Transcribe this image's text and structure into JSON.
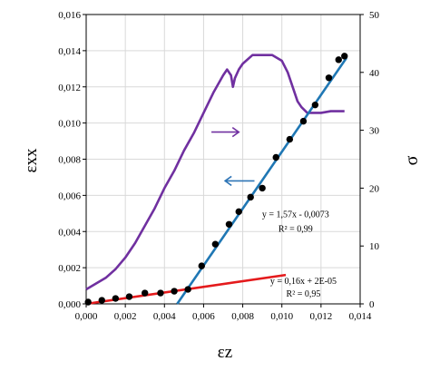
{
  "chart_data": {
    "type": "scatter",
    "xlabel": "εz",
    "ylabel_left": "εxx",
    "ylabel_right": "σ",
    "xlim": [
      0,
      0.014
    ],
    "ylim_left": [
      0,
      0.016
    ],
    "ylim_right": [
      0,
      50
    ],
    "x_ticks": [
      "0,000",
      "0,002",
      "0,004",
      "0,006",
      "0,008",
      "0,010",
      "0,012",
      "0,014"
    ],
    "y_left_ticks": [
      "0,000",
      "0,002",
      "0,004",
      "0,006",
      "0,008",
      "0,010",
      "0,012",
      "0,014",
      "0,016"
    ],
    "y_right_ticks": [
      "0",
      "10",
      "20",
      "30",
      "40",
      "50"
    ],
    "grid": true,
    "colors": {
      "points": "#000000",
      "stress_curve": "#7030a0",
      "fit_steep": "#1f77b4",
      "fit_shallow": "#e41a1c",
      "arrow_left": "#2e75b6",
      "arrow_right": "#7030a0"
    },
    "series": [
      {
        "axis": "left",
        "style": "points",
        "x": [
          0.0001,
          0.0008,
          0.0015,
          0.0022,
          0.003,
          0.0038,
          0.0045,
          0.0052,
          0.0059,
          0.0066,
          0.0073,
          0.0078,
          0.0084,
          0.009,
          0.0097,
          0.0104,
          0.0111,
          0.0117,
          0.0124,
          0.0129,
          0.0132
        ],
        "y": [
          0.0001,
          0.0002,
          0.0003,
          0.0004,
          0.0006,
          0.0006,
          0.0007,
          0.0008,
          0.0021,
          0.0033,
          0.0044,
          0.0051,
          0.0059,
          0.0064,
          0.0081,
          0.0091,
          0.0101,
          0.011,
          0.0125,
          0.0135,
          0.0137
        ]
      },
      {
        "axis": "right",
        "style": "line",
        "x": [
          0,
          0.0005,
          0.001,
          0.0015,
          0.002,
          0.0025,
          0.003,
          0.0035,
          0.004,
          0.0045,
          0.005,
          0.0055,
          0.006,
          0.0065,
          0.007,
          0.0072,
          0.0074,
          0.0075,
          0.0076,
          0.0078,
          0.008,
          0.0085,
          0.009,
          0.0095,
          0.01,
          0.0103,
          0.0106,
          0.0108,
          0.011,
          0.0113,
          0.0115,
          0.012,
          0.0125,
          0.013,
          0.0132
        ],
        "y": [
          2.5,
          3.5,
          4.5,
          6,
          8,
          10.5,
          13.5,
          16.5,
          20,
          23,
          26.5,
          29.5,
          33,
          36.5,
          39.5,
          40.5,
          39.5,
          37.5,
          39,
          40.5,
          41.5,
          43,
          43,
          43,
          42,
          40,
          37,
          35,
          34,
          33,
          33,
          33,
          33.3,
          33.3,
          33.3
        ]
      },
      {
        "axis": "left",
        "style": "fit-line",
        "x": [
          0.00465,
          0.0133
        ],
        "y": [
          0,
          0.0136
        ]
      },
      {
        "axis": "left",
        "style": "fit-line",
        "x": [
          0,
          0.0102
        ],
        "y": [
          0,
          0.0016
        ]
      }
    ],
    "annotations": [
      {
        "id": "eq1",
        "text": "y = 1,57x - 0,0073",
        "x": 0.0107,
        "y": 0.0048
      },
      {
        "id": "r1",
        "text": "R² = 0,99",
        "x": 0.0107,
        "y": 0.004
      },
      {
        "id": "eq2",
        "text": "y = 0,16x + 2E-05",
        "x": 0.0111,
        "y": 0.0011
      },
      {
        "id": "r2",
        "text": "R² = 0,95",
        "x": 0.0111,
        "y": 0.0004
      }
    ],
    "arrows": [
      {
        "direction": "right",
        "x_from": 0.0064,
        "x_to": 0.0078,
        "y": 0.0095,
        "color": "#7030a0"
      },
      {
        "direction": "left",
        "x_from": 0.0086,
        "x_to": 0.0071,
        "y": 0.0068,
        "color": "#2e75b6"
      }
    ]
  }
}
